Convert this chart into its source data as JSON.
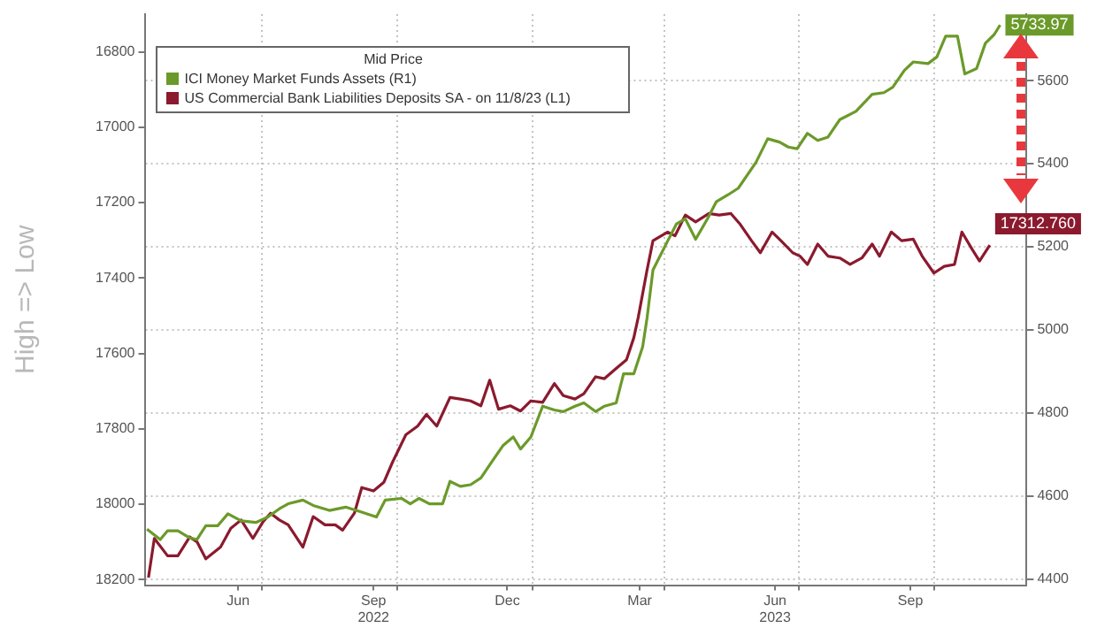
{
  "chart_data": {
    "type": "line",
    "ylabel": "High => Low",
    "legend_title": "Mid Price",
    "legend": "top left",
    "grid": true,
    "xlim": [
      "2022-04-13",
      "2023-12-03"
    ],
    "xticks": [
      {
        "value": "2022-06-15",
        "label": "Jun"
      },
      {
        "value": "2022-07-01",
        "label": null
      },
      {
        "value": "2022-09-15",
        "label": "Sep\n2022"
      },
      {
        "value": "2022-10-01",
        "label": null
      },
      {
        "value": "2022-12-15",
        "label": "Dec"
      },
      {
        "value": "2023-01-01",
        "label": null
      },
      {
        "value": "2023-03-15",
        "label": "Mar"
      },
      {
        "value": "2023-04-01",
        "label": null
      },
      {
        "value": "2023-06-15",
        "label": "Jun\n2023"
      },
      {
        "value": "2023-07-01",
        "label": null
      },
      {
        "value": "2023-09-15",
        "label": "Sep"
      },
      {
        "value": "2023-10-01",
        "label": null
      }
    ],
    "ylim": [
      18215,
      16700
    ],
    "yticks": [
      16800,
      17000,
      17200,
      17400,
      17600,
      17800,
      18000,
      18200
    ],
    "y2lim": [
      4385,
      5760
    ],
    "y2ticks": [
      4400,
      4600,
      4800,
      5000,
      5200,
      5400,
      5600
    ],
    "series": [
      {
        "name": "ICI Money Market Funds Assets (R1)",
        "color": "#6b9a2a",
        "axis": "y2",
        "x": [
          "2022-04-14",
          "2022-04-23",
          "2022-04-28",
          "2022-05-05",
          "2022-05-13",
          "2022-05-18",
          "2022-05-24",
          "2022-06-01",
          "2022-06-08",
          "2022-06-17",
          "2022-06-27",
          "2022-07-05",
          "2022-07-13",
          "2022-07-19",
          "2022-07-29",
          "2022-08-05",
          "2022-08-16",
          "2022-08-27",
          "2022-09-07",
          "2022-09-17",
          "2022-09-23",
          "2022-10-04",
          "2022-10-10",
          "2022-10-16",
          "2022-10-23",
          "2022-11-01",
          "2022-11-06",
          "2022-11-13",
          "2022-11-20",
          "2022-11-27",
          "2022-12-04",
          "2022-12-12",
          "2022-12-19",
          "2022-12-24",
          "2022-12-31",
          "2023-01-08",
          "2023-01-16",
          "2023-01-22",
          "2023-01-30",
          "2023-02-05",
          "2023-02-13",
          "2023-02-19",
          "2023-02-27",
          "2023-03-04",
          "2023-03-11",
          "2023-03-17",
          "2023-03-20",
          "2023-03-24",
          "2023-04-03",
          "2023-04-09",
          "2023-04-15",
          "2023-04-22",
          "2023-04-30",
          "2023-05-06",
          "2023-05-14",
          "2023-05-21",
          "2023-06-02",
          "2023-06-10",
          "2023-06-18",
          "2023-06-24",
          "2023-06-30",
          "2023-07-07",
          "2023-07-14",
          "2023-07-21",
          "2023-07-29",
          "2023-08-09",
          "2023-08-20",
          "2023-08-28",
          "2023-09-03",
          "2023-09-11",
          "2023-09-17",
          "2023-09-27",
          "2023-10-03",
          "2023-10-09",
          "2023-10-17",
          "2023-10-22",
          "2023-10-30",
          "2023-11-05",
          "2023-11-11",
          "2023-11-15"
        ],
        "values": [
          4520,
          4495,
          4516,
          4516,
          4499,
          4495,
          4528,
          4528,
          4557,
          4540,
          4536,
          4549,
          4569,
          4581,
          4590,
          4577,
          4565,
          4573,
          4561,
          4549,
          4590,
          4594,
          4581,
          4594,
          4581,
          4581,
          4635,
          4623,
          4627,
          4643,
          4680,
          4721,
          4742,
          4713,
          4742,
          4816,
          4807,
          4803,
          4816,
          4824,
          4803,
          4816,
          4824,
          4894,
          4894,
          4959,
          5029,
          5144,
          5214,
          5255,
          5267,
          5218,
          5267,
          5308,
          5325,
          5341,
          5403,
          5460,
          5452,
          5440,
          5436,
          5473,
          5456,
          5464,
          5506,
          5526,
          5567,
          5571,
          5584,
          5625,
          5645,
          5641,
          5657,
          5707,
          5707,
          5616,
          5629,
          5690,
          5711,
          5733.97
        ],
        "value_labels": [
          null,
          null,
          null,
          null,
          null,
          null,
          null,
          null,
          null,
          null,
          null,
          null,
          null,
          null,
          null,
          null,
          null,
          null,
          null,
          null,
          null,
          null,
          null,
          null,
          null,
          null,
          null,
          null,
          null,
          null,
          null,
          null,
          null,
          null,
          null,
          null,
          null,
          null,
          null,
          null,
          null,
          null,
          null,
          null,
          null,
          null,
          null,
          null,
          null,
          null,
          null,
          null,
          null,
          null,
          null,
          null,
          null,
          null,
          null,
          null,
          null,
          null,
          null,
          null,
          null,
          null,
          null,
          null,
          null,
          null,
          null,
          null,
          null,
          null,
          null,
          null,
          null,
          null,
          null,
          "5733.97"
        ]
      },
      {
        "name": "US Commercial Bank Liabilities Deposits SA - on 11/8/23 (L1)",
        "color": "#8b1a2e",
        "axis": "y",
        "x": [
          "2022-04-15",
          "2022-04-19",
          "2022-04-28",
          "2022-05-05",
          "2022-05-13",
          "2022-05-18",
          "2022-05-24",
          "2022-06-03",
          "2022-06-10",
          "2022-06-17",
          "2022-06-25",
          "2022-07-02",
          "2022-07-07",
          "2022-07-13",
          "2022-07-19",
          "2022-07-29",
          "2022-08-05",
          "2022-08-13",
          "2022-08-20",
          "2022-08-25",
          "2022-09-02",
          "2022-09-07",
          "2022-09-15",
          "2022-09-22",
          "2022-09-28",
          "2022-10-07",
          "2022-10-15",
          "2022-10-21",
          "2022-10-28",
          "2022-11-06",
          "2022-11-13",
          "2022-11-20",
          "2022-11-27",
          "2022-12-03",
          "2022-12-09",
          "2022-12-17",
          "2022-12-24",
          "2022-12-31",
          "2023-01-08",
          "2023-01-16",
          "2023-01-22",
          "2023-01-30",
          "2023-02-05",
          "2023-02-13",
          "2023-02-19",
          "2023-02-27",
          "2023-03-06",
          "2023-03-11",
          "2023-03-14",
          "2023-03-20",
          "2023-03-24",
          "2023-04-03",
          "2023-04-08",
          "2023-04-15",
          "2023-04-22",
          "2023-05-01",
          "2023-05-08",
          "2023-05-16",
          "2023-05-22",
          "2023-05-30",
          "2023-06-05",
          "2023-06-13",
          "2023-06-19",
          "2023-06-27",
          "2023-07-02",
          "2023-07-07",
          "2023-07-14",
          "2023-07-21",
          "2023-07-29",
          "2023-08-05",
          "2023-08-13",
          "2023-08-20",
          "2023-08-25",
          "2023-09-02",
          "2023-09-09",
          "2023-09-17",
          "2023-09-23",
          "2023-10-01",
          "2023-10-08",
          "2023-10-15",
          "2023-10-20",
          "2023-10-27",
          "2023-11-01",
          "2023-11-08"
        ],
        "values": [
          18195,
          18091,
          18137,
          18137,
          18087,
          18100,
          18145,
          18114,
          18064,
          18042,
          18091,
          18046,
          18024,
          18042,
          18055,
          18114,
          18033,
          18055,
          18055,
          18069,
          18024,
          17956,
          17965,
          17942,
          17888,
          17816,
          17793,
          17762,
          17793,
          17717,
          17721,
          17726,
          17739,
          17671,
          17748,
          17739,
          17753,
          17726,
          17730,
          17680,
          17712,
          17721,
          17707,
          17662,
          17667,
          17640,
          17617,
          17558,
          17504,
          17378,
          17301,
          17278,
          17288,
          17233,
          17251,
          17229,
          17233,
          17229,
          17256,
          17301,
          17333,
          17278,
          17301,
          17333,
          17342,
          17364,
          17310,
          17342,
          17347,
          17364,
          17347,
          17310,
          17342,
          17278,
          17301,
          17297,
          17342,
          17387,
          17369,
          17364,
          17278,
          17324,
          17355,
          17312.76
        ],
        "value_labels": [
          null,
          null,
          null,
          null,
          null,
          null,
          null,
          null,
          null,
          null,
          null,
          null,
          null,
          null,
          null,
          null,
          null,
          null,
          null,
          null,
          null,
          null,
          null,
          null,
          null,
          null,
          null,
          null,
          null,
          null,
          null,
          null,
          null,
          null,
          null,
          null,
          null,
          null,
          null,
          null,
          null,
          null,
          null,
          null,
          null,
          null,
          null,
          null,
          null,
          null,
          null,
          null,
          null,
          null,
          null,
          null,
          null,
          null,
          null,
          null,
          null,
          null,
          null,
          null,
          null,
          null,
          null,
          null,
          null,
          null,
          null,
          null,
          null,
          null,
          null,
          null,
          null,
          null,
          null,
          null,
          null,
          null,
          null,
          "17312.760"
        ]
      }
    ]
  }
}
